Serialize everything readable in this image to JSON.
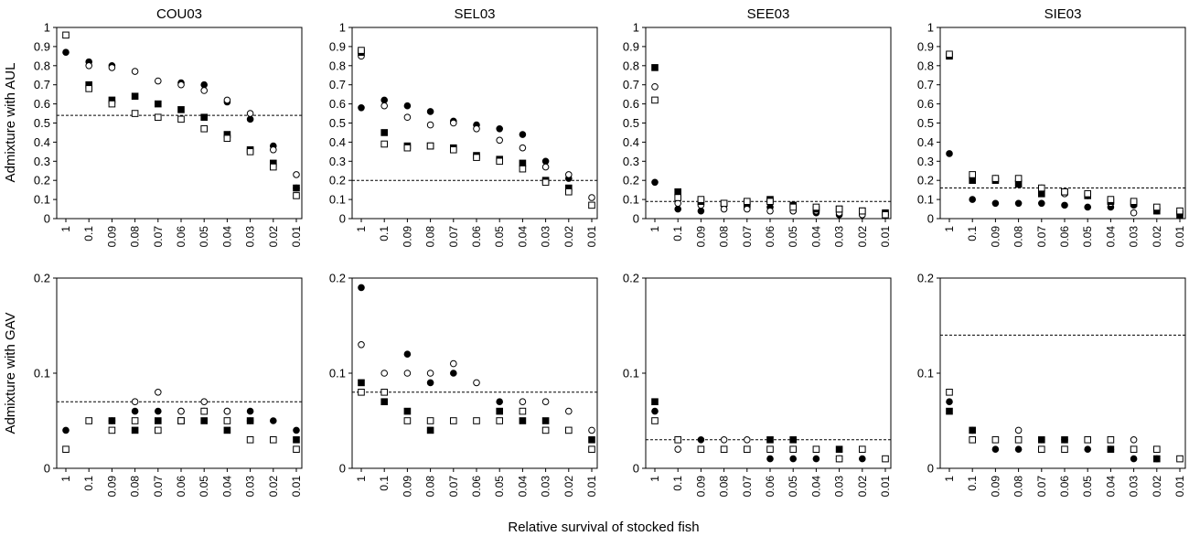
{
  "figure": {
    "xlabel": "Relative survival of stocked fish",
    "row_labels": [
      "Admixture with AUL",
      "Admixture with GAV"
    ]
  },
  "chart_data": {
    "type": "scatter",
    "categories": [
      "1",
      "0.1",
      "0.09",
      "0.08",
      "0.07",
      "0.06",
      "0.05",
      "0.04",
      "0.03",
      "0.02",
      "0.01"
    ],
    "series_styles": [
      {
        "marker": "circle",
        "fill": "#000000"
      },
      {
        "marker": "circle",
        "fill": "#ffffff"
      },
      {
        "marker": "square",
        "fill": "#000000"
      },
      {
        "marker": "square",
        "fill": "#ffffff"
      }
    ],
    "rows": [
      {
        "ylabel": "Admixture with AUL",
        "ylim": [
          0,
          1
        ],
        "yticks": [
          "0",
          "0.1",
          "0.2",
          "0.3",
          "0.4",
          "0.5",
          "0.6",
          "0.7",
          "0.8",
          "0.9",
          "1"
        ],
        "ytick_values": [
          0,
          0.1,
          0.2,
          0.3,
          0.4,
          0.5,
          0.6,
          0.7,
          0.8,
          0.9,
          1
        ],
        "panels": [
          {
            "title": "COU03",
            "reference": 0.54,
            "series": [
              [
                0.87,
                0.82,
                0.8,
                null,
                null,
                0.71,
                0.7,
                0.61,
                0.52,
                0.38,
                0.16
              ],
              [
                null,
                0.8,
                0.79,
                0.77,
                0.72,
                0.7,
                0.67,
                0.62,
                0.55,
                0.36,
                0.23
              ],
              [
                null,
                0.7,
                0.62,
                0.64,
                0.6,
                0.57,
                0.53,
                0.44,
                0.36,
                0.29,
                0.16
              ],
              [
                0.96,
                0.68,
                0.6,
                0.55,
                0.53,
                0.52,
                0.47,
                0.42,
                0.35,
                0.27,
                0.12
              ]
            ]
          },
          {
            "title": "SEL03",
            "reference": 0.2,
            "series": [
              [
                0.58,
                0.62,
                0.59,
                0.56,
                0.51,
                0.49,
                0.47,
                0.44,
                0.3,
                0.21,
                null
              ],
              [
                0.85,
                0.59,
                0.53,
                0.49,
                0.5,
                0.47,
                0.41,
                0.37,
                0.27,
                0.23,
                0.11
              ],
              [
                0.87,
                0.45,
                0.38,
                0.38,
                0.37,
                0.33,
                0.31,
                0.29,
                0.2,
                0.16,
                null
              ],
              [
                0.88,
                0.39,
                0.37,
                0.38,
                0.36,
                0.32,
                0.3,
                0.26,
                0.19,
                0.14,
                0.07
              ]
            ]
          },
          {
            "title": "SEE03",
            "reference": 0.09,
            "series": [
              [
                0.19,
                0.05,
                0.04,
                0.07,
                0.06,
                0.06,
                0.04,
                0.03,
                0.02,
                0.02,
                null
              ],
              [
                0.69,
                0.08,
                0.07,
                0.05,
                0.05,
                0.04,
                0.04,
                0.04,
                0.03,
                0.02,
                0.02
              ],
              [
                0.79,
                0.14,
                0.09,
                0.08,
                0.08,
                0.1,
                0.07,
                0.05,
                0.05,
                0.04,
                0.03
              ],
              [
                0.62,
                0.11,
                0.1,
                0.08,
                0.09,
                0.09,
                0.06,
                0.06,
                0.05,
                0.04,
                0.02
              ]
            ]
          },
          {
            "title": "SIE03",
            "reference": 0.16,
            "series": [
              [
                0.34,
                0.1,
                0.08,
                0.08,
                0.08,
                0.07,
                0.06,
                0.06,
                0.07,
                0.04,
                0.02
              ],
              [
                null,
                0.21,
                0.21,
                0.2,
                0.16,
                0.13,
                0.12,
                0.08,
                0.03,
                0.05,
                0.04
              ],
              [
                0.85,
                0.2,
                0.2,
                0.18,
                0.13,
                0.14,
                0.12,
                0.09,
                0.08,
                0.04,
                0.02
              ],
              [
                0.86,
                0.23,
                0.21,
                0.21,
                0.16,
                0.14,
                0.13,
                0.1,
                0.09,
                0.06,
                0.04
              ]
            ]
          }
        ]
      },
      {
        "ylabel": "Admixture with GAV",
        "ylim": [
          0,
          0.2
        ],
        "yticks": [
          "0",
          "0.1",
          "0.2"
        ],
        "ytick_values": [
          0,
          0.1,
          0.2
        ],
        "panels": [
          {
            "title": "",
            "reference": 0.07,
            "series": [
              [
                0.04,
                null,
                0.05,
                0.06,
                0.06,
                0.06,
                0.06,
                0.06,
                0.06,
                0.05,
                0.04
              ],
              [
                null,
                null,
                null,
                0.07,
                0.08,
                0.06,
                0.07,
                0.06,
                0.05,
                null,
                null
              ],
              [
                null,
                null,
                0.05,
                0.04,
                0.05,
                0.05,
                0.05,
                0.04,
                0.05,
                null,
                0.03
              ],
              [
                0.02,
                0.05,
                0.04,
                0.05,
                0.04,
                0.05,
                0.06,
                0.05,
                0.03,
                0.03,
                0.02
              ]
            ]
          },
          {
            "title": "",
            "reference": 0.08,
            "series": [
              [
                0.19,
                null,
                0.12,
                0.09,
                0.1,
                null,
                0.07,
                null,
                null,
                null,
                null
              ],
              [
                0.13,
                0.1,
                0.1,
                0.1,
                0.11,
                0.09,
                null,
                0.07,
                0.07,
                0.06,
                0.04
              ],
              [
                0.09,
                0.07,
                0.06,
                0.04,
                null,
                null,
                0.06,
                0.05,
                0.05,
                null,
                0.03
              ],
              [
                0.08,
                0.08,
                0.05,
                0.05,
                0.05,
                0.05,
                0.05,
                0.06,
                0.04,
                0.04,
                0.02
              ]
            ]
          },
          {
            "title": "",
            "reference": 0.03,
            "series": [
              [
                0.06,
                null,
                0.03,
                null,
                null,
                0.01,
                0.01,
                0.01,
                0.01,
                0.01,
                null
              ],
              [
                null,
                0.02,
                null,
                0.03,
                0.03,
                null,
                0.02,
                null,
                null,
                null,
                null
              ],
              [
                0.07,
                null,
                null,
                null,
                null,
                0.03,
                0.03,
                null,
                0.02,
                null,
                null
              ],
              [
                0.05,
                0.03,
                0.02,
                0.02,
                0.02,
                0.02,
                0.02,
                0.02,
                0.01,
                0.02,
                0.01
              ]
            ]
          },
          {
            "title": "",
            "reference": 0.14,
            "series": [
              [
                0.07,
                0.04,
                0.02,
                0.02,
                0.03,
                0.03,
                0.02,
                0.02,
                0.01,
                0.01,
                null
              ],
              [
                null,
                null,
                null,
                0.04,
                null,
                null,
                null,
                null,
                0.03,
                null,
                null
              ],
              [
                0.06,
                0.04,
                null,
                null,
                0.03,
                0.03,
                null,
                0.02,
                null,
                0.01,
                null
              ],
              [
                0.08,
                0.03,
                0.03,
                0.03,
                0.02,
                0.02,
                0.03,
                0.03,
                0.02,
                0.02,
                0.01
              ]
            ]
          }
        ]
      }
    ]
  }
}
